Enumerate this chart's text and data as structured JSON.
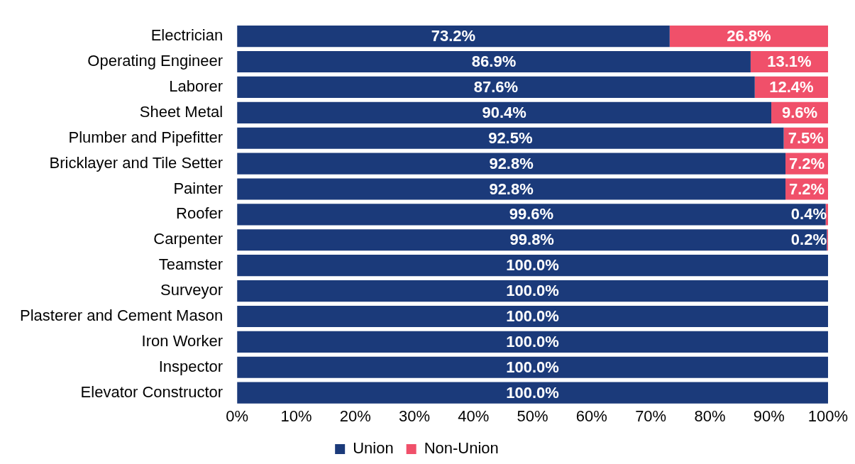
{
  "chart_data": {
    "type": "bar",
    "orientation": "horizontal",
    "stacked": true,
    "categories": [
      "Electrician",
      "Operating Engineer",
      "Laborer",
      "Sheet Metal",
      "Plumber and Pipefitter",
      "Bricklayer and Tile Setter",
      "Painter",
      "Roofer",
      "Carpenter",
      "Teamster",
      "Surveyor",
      "Plasterer and Cement Mason",
      "Iron Worker",
      "Inspector",
      "Elevator Constructor"
    ],
    "series": [
      {
        "name": "Union",
        "color": "#1b3a7a",
        "values": [
          73.2,
          86.9,
          87.6,
          90.4,
          92.5,
          92.8,
          92.8,
          99.6,
          99.8,
          100,
          100,
          100,
          100,
          100,
          100
        ],
        "value_labels": [
          "73.2%",
          "86.9%",
          "87.6%",
          "90.4%",
          "92.5%",
          "92.8%",
          "92.8%",
          "99.6%",
          "99.8%",
          "100.0%",
          "100.0%",
          "100.0%",
          "100.0%",
          "100.0%",
          "100.0%"
        ]
      },
      {
        "name": "Non-Union",
        "color": "#f0506a",
        "values": [
          26.8,
          13.1,
          12.4,
          9.6,
          7.5,
          7.2,
          7.2,
          0.4,
          0.2,
          0,
          0,
          0,
          0,
          0,
          0
        ],
        "value_labels": [
          "26.8%",
          "13.1%",
          "12.4%",
          "9.6%",
          "7.5%",
          "7.2%",
          "7.2%",
          "0.4%",
          "0.2%",
          null,
          null,
          null,
          null,
          null,
          null
        ]
      }
    ],
    "xlim": [
      0,
      100
    ],
    "xticks": [
      {
        "value": 0,
        "label": "0%"
      },
      {
        "value": 10,
        "label": "10%"
      },
      {
        "value": 20,
        "label": "20%"
      },
      {
        "value": 30,
        "label": "30%"
      },
      {
        "value": 40,
        "label": "40%"
      },
      {
        "value": 50,
        "label": "50%"
      },
      {
        "value": 60,
        "label": "60%"
      },
      {
        "value": 70,
        "label": "70%"
      },
      {
        "value": 80,
        "label": "80%"
      },
      {
        "value": 90,
        "label": "90%"
      },
      {
        "value": 100,
        "label": "100%"
      }
    ],
    "grid": false,
    "legend": "bottom"
  }
}
